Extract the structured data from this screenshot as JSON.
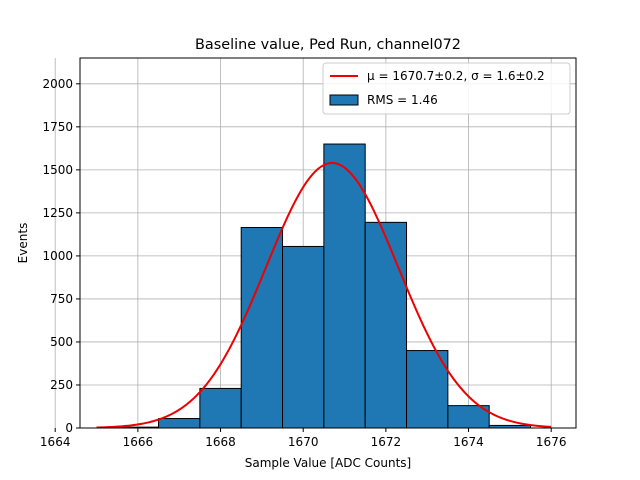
{
  "chart_data": {
    "type": "bar",
    "title": "Baseline value, Ped Run, channel072",
    "xlabel": "Sample Value [ADC Counts]",
    "ylabel": "Events",
    "xlim": [
      1664.6,
      1676.6
    ],
    "ylim": [
      0,
      2150
    ],
    "xticks": [
      1664,
      1666,
      1668,
      1670,
      1672,
      1674,
      1676
    ],
    "yticks": [
      0,
      250,
      500,
      750,
      1000,
      1250,
      1500,
      1750,
      2000
    ],
    "grid": true,
    "legend_position": "upper right",
    "bins": [
      {
        "x0": 1664.5,
        "x1": 1665.5,
        "count": 0
      },
      {
        "x0": 1665.5,
        "x1": 1666.5,
        "count": 5
      },
      {
        "x0": 1666.5,
        "x1": 1667.5,
        "count": 55
      },
      {
        "x0": 1667.5,
        "x1": 1668.5,
        "count": 230
      },
      {
        "x0": 1668.5,
        "x1": 1669.5,
        "count": 1165
      },
      {
        "x0": 1669.5,
        "x1": 1670.5,
        "count": 1055
      },
      {
        "x0": 1670.5,
        "x1": 1671.5,
        "count": 1650
      },
      {
        "x0": 1671.5,
        "x1": 1672.5,
        "count": 1195
      },
      {
        "x0": 1672.5,
        "x1": 1673.5,
        "count": 450
      },
      {
        "x0": 1673.5,
        "x1": 1674.5,
        "count": 130
      },
      {
        "x0": 1674.5,
        "x1": 1675.5,
        "count": 15
      }
    ],
    "fit": {
      "type": "gaussian",
      "mu": 1670.7,
      "sigma": 1.6,
      "amplitude": 1540,
      "x_range": [
        1665,
        1676
      ]
    },
    "legend": [
      {
        "label": "μ = 1670.7±0.2, σ = 1.6±0.2",
        "kind": "line",
        "color": "#ee0000"
      },
      {
        "label": "RMS = 1.46",
        "kind": "patch",
        "color": "#1f77b4"
      }
    ],
    "colors": {
      "bar_fill": "#1f77b4",
      "bar_edge": "#000000",
      "fit_line": "#ee0000",
      "grid": "#b0b0b0"
    }
  }
}
